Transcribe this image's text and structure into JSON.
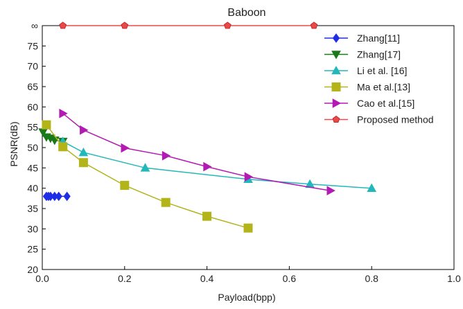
{
  "chart_data": {
    "type": "line",
    "title": "Baboon",
    "xlabel": "Payload(bpp)",
    "ylabel": "PSNR(dB)",
    "xlim": [
      0.0,
      1.0
    ],
    "ylim": [
      20,
      80
    ],
    "x_ticks": [
      0.0,
      0.2,
      0.4,
      0.6,
      0.8,
      1.0
    ],
    "x_tick_labels": [
      "0.0",
      "0.2",
      "0.4",
      "0.6",
      "0.8",
      "1.0"
    ],
    "y_ticks": [
      20,
      25,
      30,
      35,
      40,
      45,
      50,
      55,
      60,
      65,
      70,
      75,
      80
    ],
    "y_tick_labels": [
      "20",
      "25",
      "30",
      "35",
      "40",
      "45",
      "50",
      "55",
      "60",
      "65",
      "70",
      "75",
      "∞"
    ],
    "infinity_plotted_at": 80,
    "grid": false,
    "legend_position": "top-right",
    "series": [
      {
        "name": "Zhang[11]",
        "color": "#1f2ee6",
        "marker": "diamond",
        "x": [
          0.01,
          0.015,
          0.02,
          0.03,
          0.04,
          0.06
        ],
        "y": [
          38.0,
          38.0,
          38.0,
          38.0,
          38.0,
          38.0
        ]
      },
      {
        "name": "Zhang[17]",
        "color": "#1a7a1a",
        "marker": "triangle-down",
        "x": [
          0.002,
          0.01,
          0.02,
          0.03,
          0.05
        ],
        "y": [
          53.8,
          52.6,
          52.3,
          51.8,
          51.5
        ]
      },
      {
        "name": "Li et al. [16]",
        "color": "#22b8bb",
        "marker": "triangle-up",
        "x": [
          0.05,
          0.1,
          0.25,
          0.5,
          0.65,
          0.8
        ],
        "y": [
          51.5,
          48.8,
          45.0,
          42.2,
          41.0,
          40.0
        ]
      },
      {
        "name": "Ma et al.[13]",
        "color": "#b2b41a",
        "marker": "square",
        "x": [
          0.01,
          0.05,
          0.1,
          0.2,
          0.3,
          0.4,
          0.5
        ],
        "y": [
          55.6,
          50.2,
          46.3,
          40.7,
          36.5,
          33.1,
          30.2
        ]
      },
      {
        "name": "Cao et al.[15]",
        "color": "#b31ab3",
        "marker": "triangle-right",
        "x": [
          0.05,
          0.1,
          0.2,
          0.3,
          0.4,
          0.5,
          0.7
        ],
        "y": [
          58.4,
          54.3,
          49.9,
          48.0,
          45.3,
          42.8,
          39.4
        ]
      },
      {
        "name": "Proposed method",
        "color": "#e84a4a",
        "marker": "pentagon",
        "x": [
          0.05,
          0.2,
          0.45,
          0.66
        ],
        "y": [
          80,
          80,
          80,
          80
        ]
      }
    ]
  }
}
